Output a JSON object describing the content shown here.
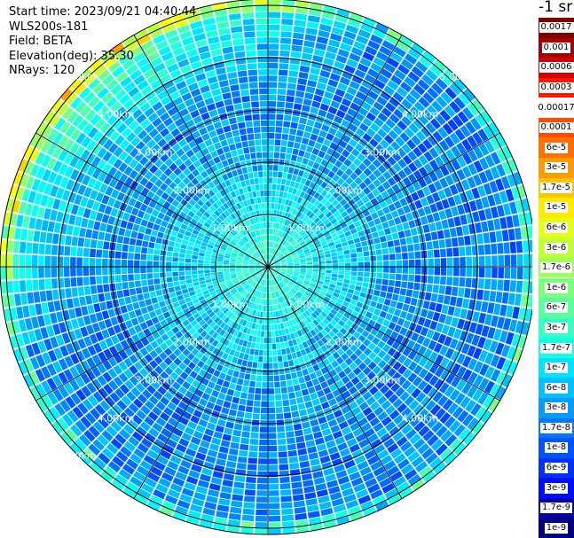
{
  "info": {
    "start_time": "Start time: 2023/09/21 04:40:44",
    "instrument": "WLS200s-181",
    "field": "Field: BETA",
    "elevation": "Elevation(deg): 35.30",
    "nrays": "NRays: 120"
  },
  "colorbar": {
    "title": "-1 sr",
    "segments": [
      {
        "label": "0.0017",
        "color": "#7f0000"
      },
      {
        "label": "0.001",
        "color": "#a80000"
      },
      {
        "label": "0.0006",
        "color": "#d20000"
      },
      {
        "label": "0.0003",
        "color": "#fa1900"
      },
      {
        "label": "0.00017",
        "color": "#ffffff"
      },
      {
        "label": "0.0001",
        "color": "#ff4a00"
      },
      {
        "label": "6e-5",
        "color": "#ff7000"
      },
      {
        "label": "3e-5",
        "color": "#ff9a00"
      },
      {
        "label": "1.7e-5",
        "color": "#ffc400"
      },
      {
        "label": "1e-5",
        "color": "#ffea00"
      },
      {
        "label": "6e-6",
        "color": "#e4ff13"
      },
      {
        "label": "3e-6",
        "color": "#c1ff36"
      },
      {
        "label": "1.7e-6",
        "color": "#9eff59"
      },
      {
        "label": "1e-6",
        "color": "#7bff7c"
      },
      {
        "label": "6e-7",
        "color": "#59ff9e"
      },
      {
        "label": "3e-7",
        "color": "#36ffc1"
      },
      {
        "label": "1.7e-7",
        "color": "#13ffe4"
      },
      {
        "label": "1e-7",
        "color": "#00e4ff"
      },
      {
        "label": "6e-8",
        "color": "#00c0ff"
      },
      {
        "label": "3e-8",
        "color": "#009cff"
      },
      {
        "label": "1.7e-8",
        "color": "#0078ff"
      },
      {
        "label": "1e-8",
        "color": "#0054ff"
      },
      {
        "label": "6e-9",
        "color": "#0030ff"
      },
      {
        "label": "3e-9",
        "color": "#000cff"
      },
      {
        "label": "1.7e-9",
        "color": "#0000b2"
      },
      {
        "label": "1e-9",
        "color": "#00007f"
      }
    ]
  },
  "chart_data": {
    "type": "heatmap",
    "title": "",
    "projection": "polar",
    "rays": 120,
    "range_rings_km": [
      1,
      2,
      3,
      4,
      5
    ],
    "ring_labels": [
      "1.00km",
      "2.00km",
      "3.00km",
      "4.00km",
      "5.00km"
    ],
    "colormap": "jet",
    "value_range": [
      1e-09,
      0.0017
    ],
    "radial_profile": [
      {
        "range_km": 0.5,
        "value": 3e-07
      },
      {
        "range_km": 1.0,
        "value": 1.7e-07
      },
      {
        "range_km": 2.0,
        "value": 6e-08
      },
      {
        "range_km": 3.0,
        "value": 3e-08
      },
      {
        "range_km": 4.0,
        "value": 3e-08
      },
      {
        "range_km": 5.0,
        "value": 3e-08
      },
      {
        "range_km": 5.5,
        "value": 6e-08
      }
    ],
    "edge_note": "Higher values (1e-6 to 1e-5) along the north-west edge of the scan"
  }
}
